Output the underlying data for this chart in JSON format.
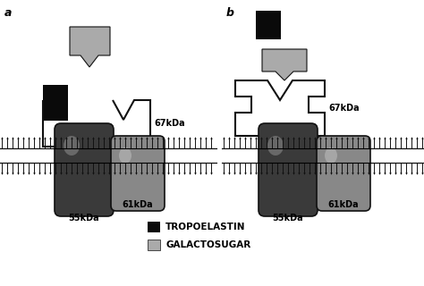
{
  "bg_color": "#ffffff",
  "label_a": "a",
  "label_b": "b",
  "tropoelastin_color": "#0a0a0a",
  "galactosugar_color": "#aaaaaa",
  "shape_outline": "#111111",
  "cyl_dark_face": "#3a3a3a",
  "cyl_dark_hi": "#888888",
  "cyl_light_face": "#888888",
  "cyl_light_hi": "#bbbbbb",
  "legend_tropoelastin": "TROPOELASTIN",
  "legend_galactosugar": "GALACTOSUGAR",
  "label_67": "67kDa",
  "label_61": "61kDa",
  "label_55": "55kDa",
  "mem_tick_color": "#111111"
}
